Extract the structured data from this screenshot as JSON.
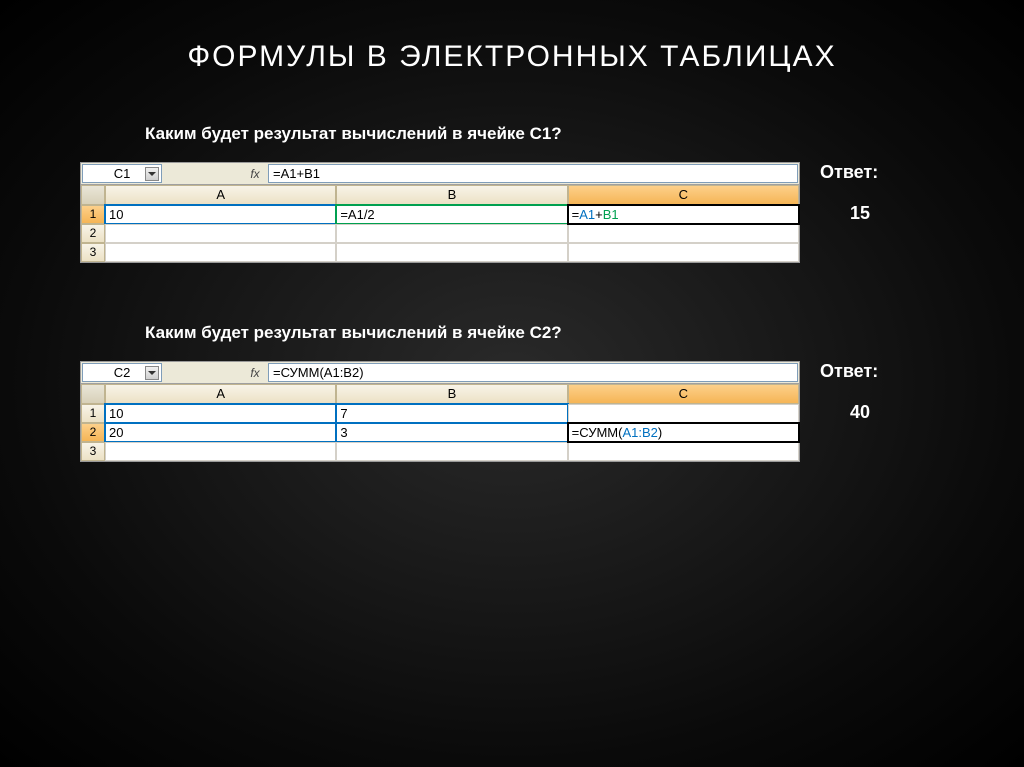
{
  "slide": {
    "title": "ФОРМУЛЫ В ЭЛЕКТРОННЫХ ТАБЛИЦАХ",
    "background_gradient": [
      "#2a2a2a",
      "#000000"
    ]
  },
  "example1": {
    "question": "Каким будет результат вычислений в ячейке С1?",
    "name_box": "C1",
    "fx_label": "fx",
    "formula_bar": "=A1+B1",
    "columns": [
      "A",
      "B",
      "C"
    ],
    "selected_col": "C",
    "rows": [
      "1",
      "2",
      "3"
    ],
    "selected_row": "1",
    "cells": {
      "A1": "10",
      "B1": "=A1/2",
      "C1_prefix": "=",
      "C1_ref1": "A1",
      "C1_op": "+",
      "C1_ref2": "B1"
    },
    "answer_label": "Ответ:",
    "answer_value": "15"
  },
  "example2": {
    "question": "Каким будет результат вычислений в ячейке С2?",
    "name_box": "C2",
    "fx_label": "fx",
    "formula_bar": "=СУММ(A1:B2)",
    "columns": [
      "A",
      "B",
      "C"
    ],
    "selected_col": "C",
    "rows": [
      "1",
      "2",
      "3"
    ],
    "selected_row": "2",
    "cells": {
      "A1": "10",
      "B1": "7",
      "C1": "",
      "A2": "20",
      "B2": "3",
      "C2_prefix": "=СУММ(",
      "C2_range": "A1:B2",
      "C2_suffix": ")"
    },
    "answer_label": "Ответ:",
    "answer_value": "40"
  },
  "colors": {
    "header_bg": "#ece1c5",
    "header_selected": "#f5b556",
    "cell_border": "#d4d0c8",
    "ref_blue": "#0070c0",
    "ref_green": "#00a050",
    "text_white": "#ffffff"
  }
}
